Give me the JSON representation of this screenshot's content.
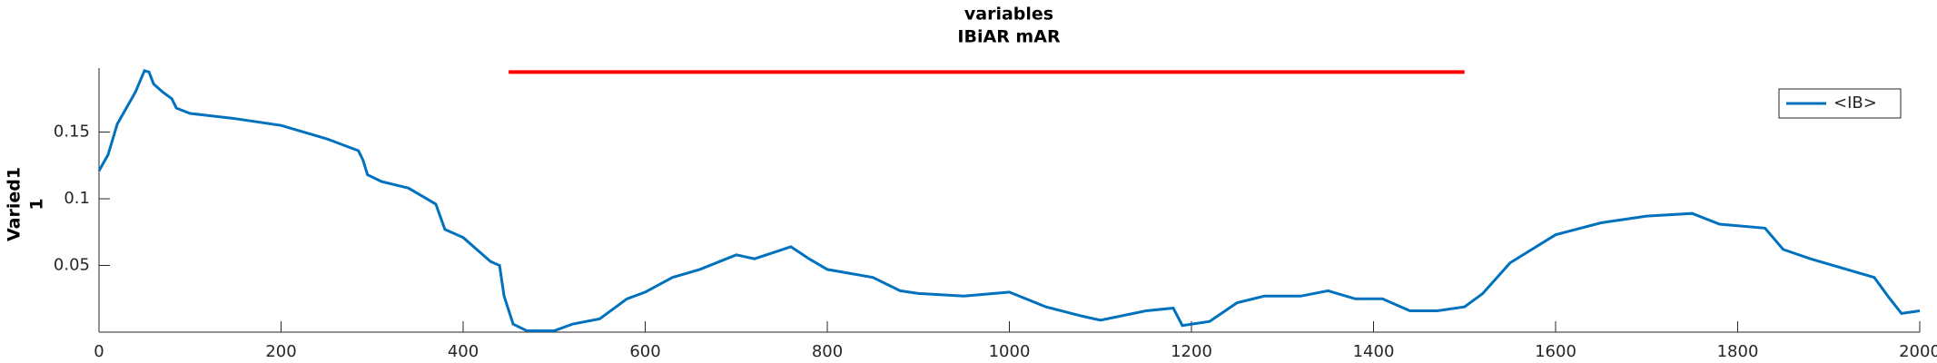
{
  "chart_data": {
    "type": "line",
    "title": [
      "variables",
      "IBiAR mAR"
    ],
    "ylabel": [
      "Varied1",
      "1"
    ],
    "x": [
      0,
      10,
      20,
      30,
      40,
      50,
      55,
      60,
      70,
      80,
      85,
      100,
      150,
      200,
      250,
      285,
      290,
      295,
      310,
      340,
      350,
      370,
      380,
      400,
      420,
      430,
      440,
      445,
      455,
      470,
      500,
      520,
      550,
      580,
      600,
      630,
      660,
      700,
      720,
      760,
      780,
      800,
      850,
      880,
      900,
      950,
      1000,
      1040,
      1080,
      1100,
      1150,
      1180,
      1190,
      1220,
      1250,
      1280,
      1320,
      1350,
      1380,
      1410,
      1440,
      1470,
      1500,
      1520,
      1550,
      1600,
      1650,
      1700,
      1750,
      1780,
      1830,
      1850,
      1880,
      1920,
      1950,
      1965,
      1980,
      2000
    ],
    "series": [
      {
        "name": "<IB>",
        "color": "#0072bd",
        "values": [
          0.121,
          0.133,
          0.156,
          0.168,
          0.18,
          0.196,
          0.195,
          0.186,
          0.18,
          0.175,
          0.168,
          0.164,
          0.16,
          0.155,
          0.145,
          0.136,
          0.129,
          0.118,
          0.113,
          0.108,
          0.104,
          0.096,
          0.077,
          0.071,
          0.059,
          0.053,
          0.05,
          0.027,
          0.006,
          0.001,
          0.001,
          0.006,
          0.01,
          0.025,
          0.03,
          0.041,
          0.047,
          0.058,
          0.055,
          0.064,
          0.055,
          0.047,
          0.041,
          0.031,
          0.029,
          0.027,
          0.03,
          0.019,
          0.012,
          0.009,
          0.016,
          0.018,
          0.005,
          0.008,
          0.022,
          0.027,
          0.027,
          0.031,
          0.025,
          0.025,
          0.016,
          0.016,
          0.019,
          0.029,
          0.052,
          0.073,
          0.082,
          0.087,
          0.089,
          0.081,
          0.078,
          0.062,
          0.055,
          0.047,
          0.041,
          0.027,
          0.014,
          0.016
        ]
      }
    ],
    "reference_line": {
      "x": [
        450,
        1500
      ],
      "values": [
        0.195,
        0.195
      ],
      "color": "#ff0000"
    },
    "xlim": [
      0,
      2000
    ],
    "ylim": [
      0,
      0.198
    ],
    "xticks": [
      0,
      200,
      400,
      600,
      800,
      1000,
      1200,
      1400,
      1600,
      1800,
      2000
    ],
    "yticks": [
      0.05,
      0.1,
      0.15
    ],
    "legend": "upper right"
  }
}
